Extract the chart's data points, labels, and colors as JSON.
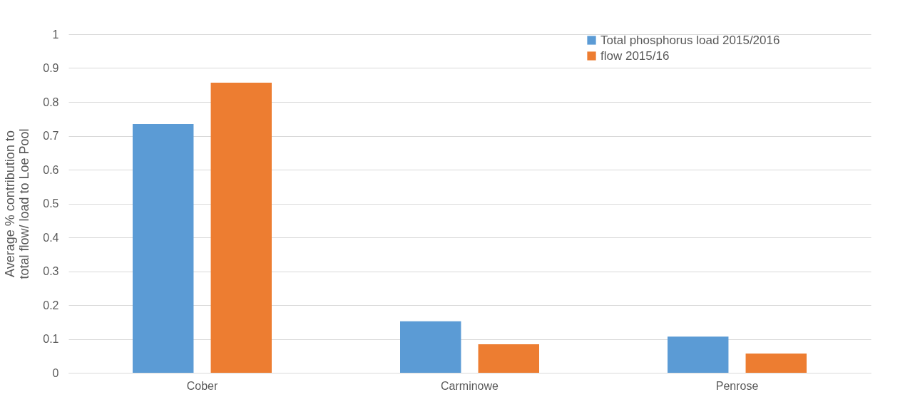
{
  "chart_data": {
    "type": "bar",
    "ylabel": "Average % contribution to total flow/ load to Loe Pool",
    "categories": [
      "Cober",
      "Carminowe",
      "Penrose"
    ],
    "series": [
      {
        "name": "Total phosphorus load 2015/2016",
        "color": "#5b9bd5",
        "values": [
          0.735,
          0.152,
          0.107
        ]
      },
      {
        "name": "flow 2015/16",
        "color": "#ed7d31",
        "values": [
          0.857,
          0.084,
          0.057
        ]
      }
    ],
    "ylim": [
      0,
      1
    ],
    "yticks": [
      0,
      0.1,
      0.2,
      0.3,
      0.4,
      0.5,
      0.6,
      0.7,
      0.8,
      0.9,
      1
    ],
    "grid": "y",
    "legend": "top right"
  }
}
